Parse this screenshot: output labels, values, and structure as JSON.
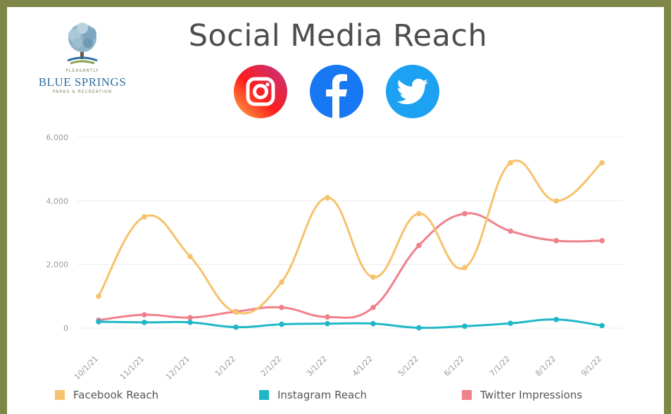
{
  "header": {
    "title": "Social Media Reach",
    "social_icons": [
      "instagram-icon",
      "facebook-icon",
      "twitter-icon"
    ]
  },
  "logo": {
    "top_line": "PLEASANTLY",
    "name": "BLUE SPRINGS",
    "bottom_line": "PARKS & RECREATION"
  },
  "colors": {
    "frame": "#7e8648",
    "facebook": "#f6c26b",
    "instagram": "#1fb7c6",
    "twitter": "#f0808a"
  },
  "chart_data": {
    "type": "line",
    "categories": [
      "10/1/21",
      "11/1/21",
      "12/1/21",
      "1/1/22",
      "2/1/22",
      "3/1/22",
      "4/1/22",
      "5/1/22",
      "6/1/22",
      "7/1/22",
      "8/1/22",
      "9/1/22"
    ],
    "y_ticks": [
      "6,000",
      "4,000",
      "2,000",
      "0"
    ],
    "ylim": [
      0,
      6000
    ],
    "grid": true,
    "legend_position": "bottom",
    "series": [
      {
        "name": "Facebook Reach",
        "color": "#f6c26b",
        "values": [
          1000,
          3500,
          2250,
          500,
          1450,
          4100,
          1600,
          3600,
          1900,
          5200,
          4000,
          5200
        ]
      },
      {
        "name": "Instagram Reach",
        "color": "#1fb7c6",
        "values": [
          200,
          180,
          180,
          30,
          120,
          140,
          140,
          10,
          60,
          150,
          270,
          80
        ]
      },
      {
        "name": "Twitter Impressions",
        "color": "#f0808a",
        "values": [
          250,
          420,
          330,
          520,
          650,
          350,
          650,
          2600,
          3600,
          3050,
          2750,
          2750
        ]
      }
    ]
  }
}
